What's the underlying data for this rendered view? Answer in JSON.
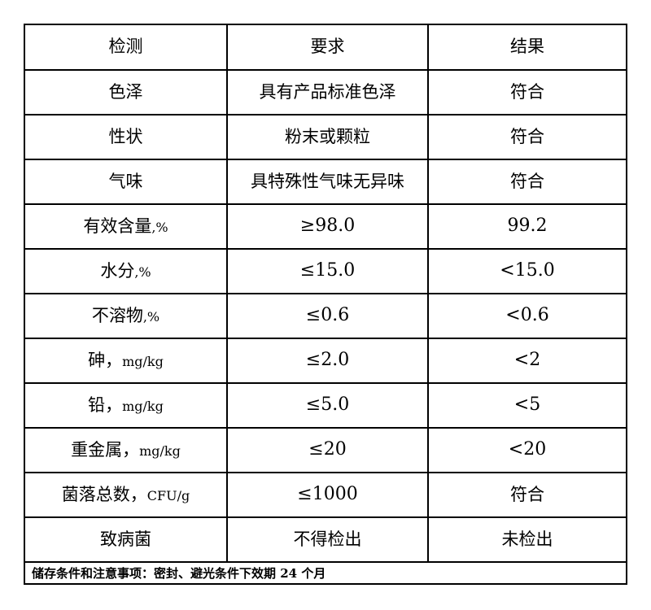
{
  "table": {
    "headers": {
      "test": "检测",
      "requirement": "要求",
      "result": "结果"
    },
    "rows": [
      {
        "test": "色泽",
        "unit": "",
        "requirement": "具有产品标准色泽",
        "result": "符合"
      },
      {
        "test": "性状",
        "unit": "",
        "requirement": "粉末或颗粒",
        "result": "符合"
      },
      {
        "test": "气味",
        "unit": "",
        "requirement": "具特殊性气味无异味",
        "result": "符合"
      },
      {
        "test": "有效含量",
        "unit": ",%",
        "requirement": "≥98.0",
        "result": "99.2"
      },
      {
        "test": "水分",
        "unit": ",%",
        "requirement": "≤15.0",
        "result": "<15.0"
      },
      {
        "test": "不溶物",
        "unit": ",%",
        "requirement": "≤0.6",
        "result": "<0.6"
      },
      {
        "test": "砷，",
        "unit": "mg/kg",
        "requirement": "≤2.0",
        "result": "<2"
      },
      {
        "test": "铅，",
        "unit": "mg/kg",
        "requirement": "≤5.0",
        "result": "<5"
      },
      {
        "test": "重金属，",
        "unit": "mg/kg",
        "requirement": "≤20",
        "result": "<20"
      },
      {
        "test": "菌落总数，",
        "unit": "CFU/g",
        "requirement": "≤1000",
        "result": "符合"
      },
      {
        "test": "致病菌",
        "unit": "",
        "requirement": "不得检出",
        "result": "未检出"
      }
    ],
    "footer_note": "储存条件和注意事项：密封、避光条件下效期 24 个月",
    "border_color": "#000000",
    "background_color": "#ffffff"
  }
}
